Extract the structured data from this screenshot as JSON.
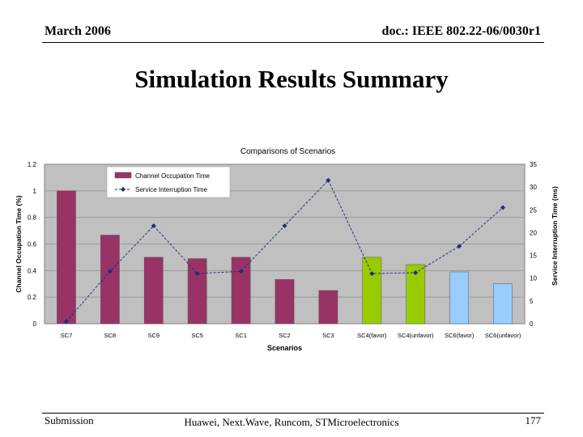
{
  "header": {
    "date": "March 2006",
    "doc": "doc.: IEEE 802.22-06/0030r1"
  },
  "slide_title": "Simulation Results Summary",
  "footer": {
    "left": "Submission",
    "center": "Huawei, Next.Wave, Runcom, STMicroelectronics",
    "page": "177"
  },
  "chart_data": {
    "type": "bar",
    "title": "Comparisons of Scenarios",
    "xlabel": "Scenarios",
    "ylabel": "Channel Occupation Time (%)",
    "y2label": "Service Interruption Time (ms)",
    "categories": [
      "SC7",
      "SC8",
      "SC9",
      "SC5",
      "SC1",
      "SC2",
      "SC3",
      "SC4(favor)",
      "SC4(unfavor)",
      "SC6(favor)",
      "SC6(unfavor)"
    ],
    "ylim": [
      0,
      1.2
    ],
    "y2lim": [
      0,
      35
    ],
    "yticks": [
      "0",
      "0.2",
      "0.4",
      "0.6",
      "0.8",
      "1",
      "1.2"
    ],
    "y2ticks": [
      "0",
      "5",
      "10",
      "15",
      "20",
      "25",
      "30",
      "35"
    ],
    "grid": "horizontal",
    "legend_position": "top-left",
    "series": [
      {
        "name": "Channel Occupation Time",
        "kind": "bar",
        "axis": "left",
        "values": [
          1.0,
          0.667,
          0.5,
          0.49,
          0.5,
          0.333,
          0.25,
          0.5,
          0.445,
          0.39,
          0.3
        ],
        "colors": [
          "#993366",
          "#993366",
          "#993366",
          "#993366",
          "#993366",
          "#993366",
          "#993366",
          "#99cc00",
          "#99cc00",
          "#99ccff",
          "#99ccff"
        ]
      },
      {
        "name": "Service Interruption Time",
        "kind": "line",
        "axis": "right",
        "values": [
          0.5,
          11.5,
          21.5,
          11,
          11.5,
          21.5,
          31.5,
          11,
          11.2,
          17,
          25.5
        ],
        "color": "#1f2d7a"
      }
    ],
    "plot_background": "#c0c0c0"
  }
}
